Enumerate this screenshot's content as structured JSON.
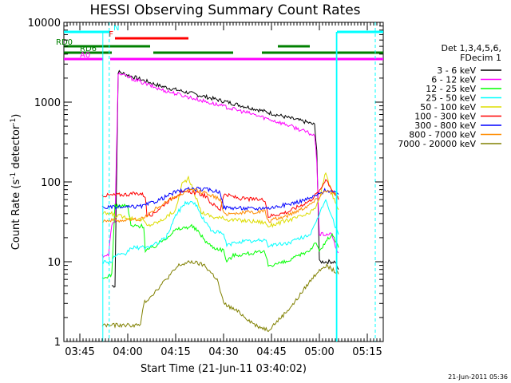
{
  "chart_data": {
    "type": "line",
    "title": "HESSI Observing Summary Count Rates",
    "xlabel": "Start Time (21-Jun-11 03:40:02)",
    "ylabel_main": "Count Rate (s",
    "ylabel_sup1": "-1",
    "ylabel_mid": " detector",
    "ylabel_sup2": "-1",
    "ylabel_end": ")",
    "yscale": "log",
    "ylim": [
      1,
      10000
    ],
    "xlim_minutes": [
      0,
      100
    ],
    "x_ticks": [
      {
        "t": 5,
        "label": "03:45"
      },
      {
        "t": 20,
        "label": "04:00"
      },
      {
        "t": 35,
        "label": "04:15"
      },
      {
        "t": 50,
        "label": "04:30"
      },
      {
        "t": 65,
        "label": "04:45"
      },
      {
        "t": 80,
        "label": "05:00"
      },
      {
        "t": 95,
        "label": "05:15"
      }
    ],
    "y_ticks": [
      {
        "v": 1,
        "label": "1"
      },
      {
        "v": 10,
        "label": "10"
      },
      {
        "v": 100,
        "label": "100"
      },
      {
        "v": 1000,
        "label": "1000"
      },
      {
        "v": 10000,
        "label": "10000"
      }
    ],
    "legend_header": [
      "Det 1,3,4,5,6,",
      "FDecim 1"
    ],
    "series": [
      {
        "name": "3 - 6 keV",
        "color": "#000000",
        "points": [
          [
            15,
            5
          ],
          [
            16,
            5
          ],
          [
            17,
            2400
          ],
          [
            30,
            1600
          ],
          [
            45,
            1150
          ],
          [
            60,
            820
          ],
          [
            70,
            640
          ],
          [
            76,
            560
          ],
          [
            78.5,
            520
          ],
          [
            79.2,
            250
          ],
          [
            80,
            10
          ],
          [
            85,
            10
          ],
          [
            86,
            8
          ]
        ]
      },
      {
        "name": "6 - 12 keV",
        "color": "#ff00ff",
        "points": [
          [
            12,
            12
          ],
          [
            14,
            12
          ],
          [
            15,
            30
          ],
          [
            16,
            30
          ],
          [
            17,
            2300
          ],
          [
            30,
            1450
          ],
          [
            45,
            1000
          ],
          [
            60,
            690
          ],
          [
            70,
            520
          ],
          [
            76,
            420
          ],
          [
            78.5,
            380
          ],
          [
            79.2,
            180
          ],
          [
            80,
            22
          ],
          [
            84,
            22
          ],
          [
            85,
            15
          ],
          [
            86,
            13
          ]
        ]
      },
      {
        "name": "12 - 25 keV",
        "color": "#00ff00",
        "points": [
          [
            12,
            6
          ],
          [
            15,
            7
          ],
          [
            16,
            50
          ],
          [
            20,
            50
          ],
          [
            21,
            28
          ],
          [
            25,
            28
          ],
          [
            25.5,
            14
          ],
          [
            28,
            15
          ],
          [
            32,
            20
          ],
          [
            35,
            25
          ],
          [
            40,
            28
          ],
          [
            42,
            24
          ],
          [
            45,
            17
          ],
          [
            47,
            15
          ],
          [
            50,
            14
          ],
          [
            51,
            10
          ],
          [
            53,
            12
          ],
          [
            60,
            13
          ],
          [
            63,
            13
          ],
          [
            64,
            9
          ],
          [
            70,
            10
          ],
          [
            77,
            14
          ],
          [
            79,
            18
          ],
          [
            80,
            13
          ],
          [
            82,
            18
          ],
          [
            84,
            22
          ],
          [
            86,
            15
          ]
        ]
      },
      {
        "name": "25 - 50 keV",
        "color": "#00ffff",
        "points": [
          [
            12,
            10
          ],
          [
            15,
            10
          ],
          [
            16,
            12
          ],
          [
            19,
            12
          ],
          [
            21,
            15
          ],
          [
            25,
            15
          ],
          [
            28,
            16
          ],
          [
            32,
            20
          ],
          [
            35,
            38
          ],
          [
            38,
            55
          ],
          [
            41,
            55
          ],
          [
            43,
            38
          ],
          [
            46,
            25
          ],
          [
            50,
            22
          ],
          [
            51,
            16
          ],
          [
            55,
            18
          ],
          [
            60,
            18
          ],
          [
            63,
            19
          ],
          [
            64,
            16
          ],
          [
            70,
            17
          ],
          [
            77,
            22
          ],
          [
            79,
            30
          ],
          [
            80,
            40
          ],
          [
            82,
            62
          ],
          [
            83,
            45
          ],
          [
            86,
            22
          ]
        ]
      },
      {
        "name": "50 - 100 keV",
        "color": "#dddd00",
        "points": [
          [
            12,
            40
          ],
          [
            15,
            40
          ],
          [
            16,
            38
          ],
          [
            20,
            36
          ],
          [
            25,
            33
          ],
          [
            26,
            28
          ],
          [
            30,
            32
          ],
          [
            35,
            44
          ],
          [
            37,
            95
          ],
          [
            39,
            110
          ],
          [
            41,
            70
          ],
          [
            43,
            42
          ],
          [
            47,
            36
          ],
          [
            50,
            35
          ],
          [
            51,
            34
          ],
          [
            55,
            33
          ],
          [
            60,
            32
          ],
          [
            63,
            31
          ],
          [
            64,
            28
          ],
          [
            70,
            33
          ],
          [
            77,
            40
          ],
          [
            79,
            50
          ],
          [
            80,
            60
          ],
          [
            82,
            135
          ],
          [
            84,
            70
          ],
          [
            86,
            45
          ]
        ]
      },
      {
        "name": "100 - 300 keV",
        "color": "#ff0000",
        "points": [
          [
            12,
            68
          ],
          [
            15,
            68
          ],
          [
            20,
            70
          ],
          [
            24,
            72
          ],
          [
            25.5,
            66
          ],
          [
            26,
            38
          ],
          [
            28,
            40
          ],
          [
            32,
            55
          ],
          [
            36,
            72
          ],
          [
            40,
            75
          ],
          [
            44,
            68
          ],
          [
            46,
            55
          ],
          [
            49,
            45
          ],
          [
            50,
            70
          ],
          [
            55,
            62
          ],
          [
            60,
            60
          ],
          [
            63,
            60
          ],
          [
            64,
            37
          ],
          [
            70,
            42
          ],
          [
            77,
            58
          ],
          [
            79,
            70
          ],
          [
            80,
            75
          ],
          [
            82,
            110
          ],
          [
            84,
            80
          ],
          [
            86,
            60
          ]
        ]
      },
      {
        "name": "300 - 800 keV",
        "color": "#0000ff",
        "points": [
          [
            12,
            48
          ],
          [
            15,
            48
          ],
          [
            20,
            48
          ],
          [
            25,
            50
          ],
          [
            26,
            52
          ],
          [
            30,
            60
          ],
          [
            35,
            75
          ],
          [
            40,
            82
          ],
          [
            45,
            80
          ],
          [
            49,
            75
          ],
          [
            50,
            48
          ],
          [
            55,
            47
          ],
          [
            60,
            46
          ],
          [
            63,
            48
          ],
          [
            64,
            47
          ],
          [
            70,
            52
          ],
          [
            77,
            62
          ],
          [
            79,
            68
          ],
          [
            80,
            70
          ],
          [
            82,
            80
          ],
          [
            84,
            75
          ],
          [
            86,
            70
          ]
        ]
      },
      {
        "name": "800 - 7000 keV",
        "color": "#ff8c00",
        "points": [
          [
            12,
            33
          ],
          [
            15,
            33
          ],
          [
            20,
            33
          ],
          [
            25,
            35
          ],
          [
            26,
            38
          ],
          [
            30,
            50
          ],
          [
            35,
            65
          ],
          [
            40,
            80
          ],
          [
            45,
            72
          ],
          [
            49,
            60
          ],
          [
            50,
            40
          ],
          [
            55,
            41
          ],
          [
            60,
            42
          ],
          [
            63,
            43
          ],
          [
            64,
            32
          ],
          [
            70,
            38
          ],
          [
            77,
            52
          ],
          [
            79,
            60
          ],
          [
            80,
            66
          ],
          [
            82,
            80
          ],
          [
            84,
            72
          ],
          [
            86,
            65
          ]
        ]
      },
      {
        "name": "7000 - 20000 keV",
        "color": "#808000",
        "points": [
          [
            12,
            1.6
          ],
          [
            15,
            1.6
          ],
          [
            20,
            1.6
          ],
          [
            24,
            1.6
          ],
          [
            25,
            3
          ],
          [
            28,
            4
          ],
          [
            32,
            6
          ],
          [
            36,
            9
          ],
          [
            40,
            10
          ],
          [
            44,
            9
          ],
          [
            48,
            6
          ],
          [
            50,
            3
          ],
          [
            55,
            2.3
          ],
          [
            60,
            1.6
          ],
          [
            64,
            1.4
          ],
          [
            68,
            2
          ],
          [
            72,
            3
          ],
          [
            76,
            5
          ],
          [
            80,
            8
          ],
          [
            82,
            9
          ],
          [
            84,
            8
          ],
          [
            86,
            7
          ]
        ]
      }
    ],
    "state_flags": [
      {
        "label": "N",
        "color": "#00ffff",
        "segments": [
          [
            0,
            14.5
          ],
          [
            85.5,
            100
          ]
        ],
        "level": 0
      },
      {
        "label": "F",
        "color": "#ff0000",
        "segments": [
          [
            16,
            39
          ]
        ],
        "level": 1
      },
      {
        "label": "RD0",
        "color": "#008000",
        "segments": [
          [
            0,
            27
          ],
          [
            67,
            77
          ]
        ],
        "level": 2
      },
      {
        "label": "RD6",
        "color": "#008000",
        "segments": [
          [
            0,
            15
          ],
          [
            28,
            53
          ],
          [
            62,
            100
          ]
        ],
        "level": 3
      },
      {
        "label": "A0",
        "color": "#ff00ff",
        "segments": [
          [
            0,
            12.3
          ],
          [
            14.5,
            100
          ]
        ],
        "level": 4
      }
    ],
    "spike_markers": [
      {
        "t": 12.2,
        "color": "#00ffff"
      },
      {
        "t": 85.3,
        "color": "#00ffff"
      },
      {
        "t": 85.5,
        "color": "#00ffff"
      }
    ],
    "dashed_markers": [
      {
        "t": 14.2,
        "color": "#00ffff"
      },
      {
        "t": 97.5,
        "color": "#00ffff"
      }
    ],
    "grid": false,
    "legend_position": "right"
  },
  "footer_timestamp": "21-Jun-2011 05:36"
}
